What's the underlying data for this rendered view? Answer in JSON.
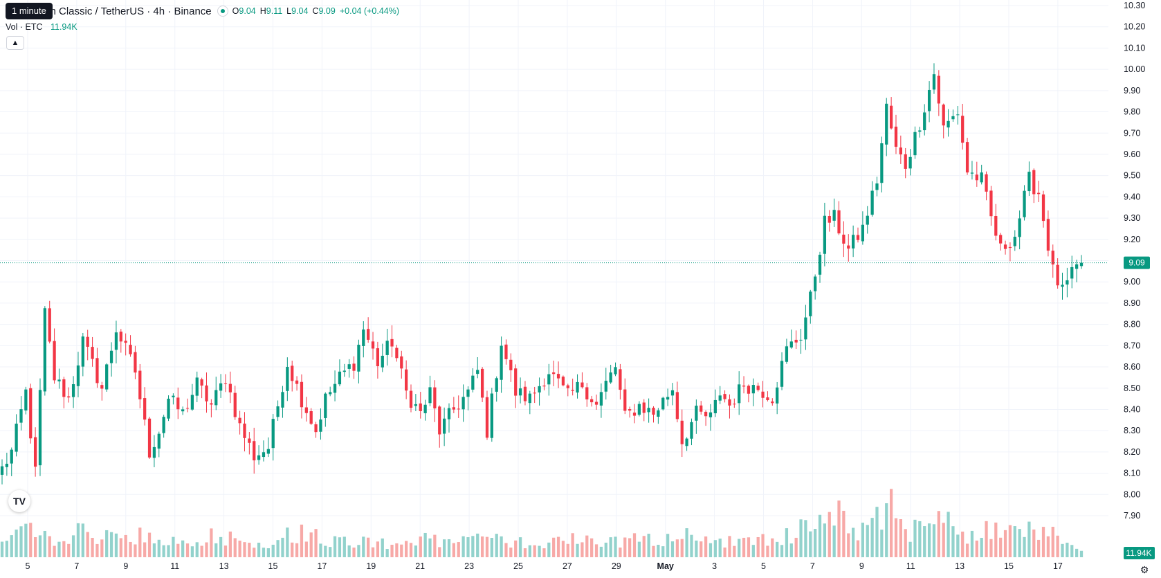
{
  "legend": {
    "title": "um Classic / TetherUS · 4h · Binance",
    "ohlc": [
      {
        "key": "O",
        "value": "9.04"
      },
      {
        "key": "H",
        "value": "9.11"
      },
      {
        "key": "L",
        "value": "9.04"
      },
      {
        "key": "C",
        "value": "9.09"
      }
    ],
    "change": "+0.04 (+0.44%)",
    "tooltip": "1 minute",
    "volume_label": "Vol · ETC",
    "volume_value": "11.94K"
  },
  "price_axis": {
    "ticks": [
      "10.30",
      "10.20",
      "10.10",
      "10.00",
      "9.90",
      "9.80",
      "9.70",
      "9.60",
      "9.50",
      "9.40",
      "9.30",
      "9.20",
      "9.10",
      "9.00",
      "8.90",
      "8.80",
      "8.70",
      "8.60",
      "8.50",
      "8.40",
      "8.30",
      "8.20",
      "8.10",
      "8.00",
      "7.90"
    ],
    "last_price_label": "9.09",
    "last_volume_label": "11.94K"
  },
  "time_axis": {
    "ticks": [
      {
        "label": "5",
        "bold": false
      },
      {
        "label": "7",
        "bold": false
      },
      {
        "label": "9",
        "bold": false
      },
      {
        "label": "11",
        "bold": false
      },
      {
        "label": "13",
        "bold": false
      },
      {
        "label": "15",
        "bold": false
      },
      {
        "label": "17",
        "bold": false
      },
      {
        "label": "19",
        "bold": false
      },
      {
        "label": "21",
        "bold": false
      },
      {
        "label": "23",
        "bold": false
      },
      {
        "label": "25",
        "bold": false
      },
      {
        "label": "27",
        "bold": false
      },
      {
        "label": "29",
        "bold": false
      },
      {
        "label": "May",
        "bold": true
      },
      {
        "label": "3",
        "bold": false
      },
      {
        "label": "5",
        "bold": false
      },
      {
        "label": "7",
        "bold": false
      },
      {
        "label": "9",
        "bold": false
      },
      {
        "label": "11",
        "bold": false
      },
      {
        "label": "13",
        "bold": false
      },
      {
        "label": "15",
        "bold": false
      },
      {
        "label": "17",
        "bold": false
      }
    ]
  },
  "colors": {
    "up": "#089981",
    "down": "#f23645",
    "up_volume": "#92d2cc",
    "down_volume": "#f7a9a7",
    "grid": "#f0f3fa",
    "axis_text": "#131722",
    "last_price_line": "#089981"
  },
  "icons": {
    "logo": "tradingview-logo-icon",
    "collapse": "chevron-up-icon",
    "settings": "gear-icon"
  },
  "chart_data": {
    "type": "candlestick",
    "price_range": [
      7.9,
      10.3
    ],
    "last_price": 9.09,
    "interval": "4h",
    "anchors": [
      [
        0,
        8.12
      ],
      [
        2,
        8.2
      ],
      [
        5,
        8.48
      ],
      [
        7,
        8.1
      ],
      [
        9,
        8.85
      ],
      [
        11,
        8.55
      ],
      [
        14,
        8.45
      ],
      [
        17,
        8.72
      ],
      [
        21,
        8.5
      ],
      [
        24,
        8.78
      ],
      [
        28,
        8.58
      ],
      [
        31,
        8.2
      ],
      [
        33,
        8.3
      ],
      [
        35,
        8.45
      ],
      [
        38,
        8.38
      ],
      [
        41,
        8.52
      ],
      [
        44,
        8.42
      ],
      [
        47,
        8.55
      ],
      [
        50,
        8.32
      ],
      [
        53,
        8.18
      ],
      [
        56,
        8.22
      ],
      [
        60,
        8.62
      ],
      [
        63,
        8.45
      ],
      [
        66,
        8.3
      ],
      [
        68,
        8.45
      ],
      [
        71,
        8.55
      ],
      [
        74,
        8.62
      ],
      [
        76,
        8.78
      ],
      [
        79,
        8.62
      ],
      [
        82,
        8.72
      ],
      [
        85,
        8.48
      ],
      [
        88,
        8.38
      ],
      [
        90,
        8.48
      ],
      [
        92,
        8.3
      ],
      [
        95,
        8.4
      ],
      [
        98,
        8.48
      ],
      [
        100,
        8.58
      ],
      [
        102,
        8.3
      ],
      [
        105,
        8.72
      ],
      [
        108,
        8.48
      ],
      [
        111,
        8.45
      ],
      [
        115,
        8.58
      ],
      [
        119,
        8.46
      ],
      [
        122,
        8.52
      ],
      [
        125,
        8.42
      ],
      [
        127,
        8.52
      ],
      [
        129,
        8.6
      ],
      [
        131,
        8.36
      ],
      [
        134,
        8.42
      ],
      [
        137,
        8.38
      ],
      [
        141,
        8.5
      ],
      [
        143,
        8.25
      ],
      [
        146,
        8.38
      ],
      [
        149,
        8.36
      ],
      [
        151,
        8.48
      ],
      [
        153,
        8.42
      ],
      [
        156,
        8.52
      ],
      [
        159,
        8.5
      ],
      [
        162,
        8.46
      ],
      [
        165,
        8.68
      ],
      [
        168,
        8.75
      ],
      [
        170,
        8.92
      ],
      [
        173,
        9.28
      ],
      [
        175,
        9.3
      ],
      [
        178,
        9.15
      ],
      [
        181,
        9.25
      ],
      [
        184,
        9.48
      ],
      [
        186,
        9.82
      ],
      [
        188,
        9.62
      ],
      [
        190,
        9.55
      ],
      [
        193,
        9.75
      ],
      [
        196,
        9.98
      ],
      [
        198,
        9.72
      ],
      [
        201,
        9.8
      ],
      [
        203,
        9.52
      ],
      [
        206,
        9.48
      ],
      [
        208,
        9.3
      ],
      [
        210,
        9.15
      ],
      [
        213,
        9.22
      ],
      [
        216,
        9.48
      ],
      [
        218,
        9.42
      ],
      [
        221,
        9.05
      ],
      [
        223,
        8.95
      ],
      [
        225,
        9.03
      ],
      [
        227,
        9.09
      ]
    ],
    "volume_anchors": [
      [
        0,
        0.15
      ],
      [
        3,
        0.28
      ],
      [
        9,
        0.4
      ],
      [
        12,
        0.18
      ],
      [
        16,
        0.35
      ],
      [
        20,
        0.22
      ],
      [
        26,
        0.3
      ],
      [
        30,
        0.26
      ],
      [
        34,
        0.2
      ],
      [
        40,
        0.18
      ],
      [
        44,
        0.3
      ],
      [
        49,
        0.24
      ],
      [
        52,
        0.18
      ],
      [
        57,
        0.22
      ],
      [
        61,
        0.3
      ],
      [
        66,
        0.38
      ],
      [
        69,
        0.2
      ],
      [
        74,
        0.22
      ],
      [
        80,
        0.18
      ],
      [
        86,
        0.24
      ],
      [
        92,
        0.2
      ],
      [
        96,
        0.22
      ],
      [
        102,
        0.26
      ],
      [
        108,
        0.18
      ],
      [
        113,
        0.2
      ],
      [
        118,
        0.22
      ],
      [
        122,
        0.26
      ],
      [
        127,
        0.18
      ],
      [
        133,
        0.24
      ],
      [
        138,
        0.22
      ],
      [
        143,
        0.3
      ],
      [
        148,
        0.2
      ],
      [
        153,
        0.22
      ],
      [
        158,
        0.2
      ],
      [
        164,
        0.26
      ],
      [
        168,
        0.35
      ],
      [
        172,
        0.5
      ],
      [
        176,
        0.6
      ],
      [
        180,
        0.38
      ],
      [
        184,
        0.48
      ],
      [
        187,
        0.85
      ],
      [
        190,
        0.3
      ],
      [
        194,
        0.4
      ],
      [
        197,
        0.6
      ],
      [
        201,
        0.32
      ],
      [
        205,
        0.24
      ],
      [
        208,
        0.38
      ],
      [
        212,
        0.3
      ],
      [
        215,
        0.4
      ],
      [
        219,
        0.35
      ],
      [
        223,
        0.28
      ],
      [
        227,
        0.1
      ]
    ]
  }
}
